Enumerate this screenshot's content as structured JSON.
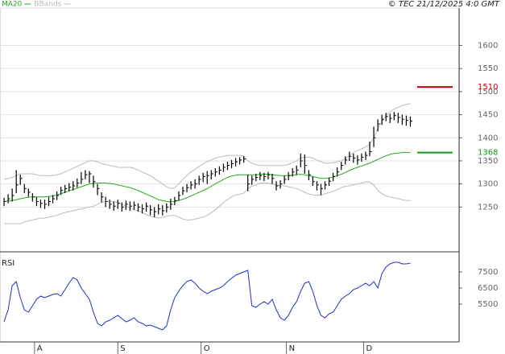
{
  "credit": "© TEC 21/12/2025 4:0 GMT",
  "chart_data": [
    {
      "type": "ohlc",
      "xlim": [
        -1,
        112
      ],
      "ylim": [
        1153,
        1681
      ],
      "yticks": [
        1250,
        1300,
        1350,
        1400,
        1450,
        1500,
        1550,
        1600
      ],
      "grid": true,
      "bar_color": "#000000",
      "high": [
        1270,
        1278,
        1290,
        1330,
        1320,
        1300,
        1290,
        1280,
        1272,
        1266,
        1266,
        1272,
        1276,
        1284,
        1294,
        1298,
        1302,
        1306,
        1312,
        1326,
        1330,
        1328,
        1318,
        1300,
        1282,
        1272,
        1266,
        1262,
        1266,
        1260,
        1264,
        1262,
        1262,
        1258,
        1256,
        1260,
        1254,
        1250,
        1256,
        1254,
        1258,
        1268,
        1272,
        1284,
        1294,
        1300,
        1306,
        1310,
        1318,
        1324,
        1328,
        1330,
        1334,
        1338,
        1344,
        1348,
        1352,
        1356,
        1358,
        1360,
        1320,
        1318,
        1322,
        1326,
        1324,
        1326,
        1322,
        1306,
        1308,
        1318,
        1326,
        1334,
        1340,
        1366,
        1364,
        1330,
        1316,
        1306,
        1300,
        1306,
        1314,
        1324,
        1336,
        1348,
        1360,
        1370,
        1366,
        1362,
        1366,
        1370,
        1392,
        1424,
        1440,
        1450,
        1454,
        1452,
        1456,
        1454,
        1450,
        1448,
        1446
      ],
      "low": [
        1252,
        1258,
        1262,
        1280,
        1298,
        1280,
        1272,
        1262,
        1252,
        1248,
        1246,
        1252,
        1258,
        1265,
        1276,
        1280,
        1284,
        1286,
        1292,
        1300,
        1310,
        1302,
        1292,
        1276,
        1260,
        1250,
        1246,
        1242,
        1246,
        1240,
        1244,
        1242,
        1244,
        1240,
        1236,
        1240,
        1232,
        1228,
        1234,
        1232,
        1238,
        1244,
        1254,
        1264,
        1276,
        1282,
        1288,
        1290,
        1298,
        1304,
        1300,
        1310,
        1316,
        1320,
        1326,
        1330,
        1334,
        1338,
        1342,
        1346,
        1284,
        1298,
        1306,
        1308,
        1306,
        1310,
        1300,
        1286,
        1290,
        1300,
        1308,
        1316,
        1320,
        1336,
        1322,
        1308,
        1296,
        1286,
        1276,
        1288,
        1296,
        1306,
        1316,
        1330,
        1342,
        1350,
        1346,
        1342,
        1348,
        1352,
        1360,
        1380,
        1414,
        1428,
        1436,
        1432,
        1438,
        1432,
        1428,
        1426,
        1424
      ],
      "close": [
        1262,
        1268,
        1275,
        1298,
        1312,
        1290,
        1282,
        1272,
        1262,
        1258,
        1256,
        1262,
        1268,
        1275,
        1286,
        1290,
        1293,
        1296,
        1302,
        1310,
        1320,
        1322,
        1305,
        1290,
        1272,
        1262,
        1256,
        1252,
        1258,
        1250,
        1256,
        1252,
        1254,
        1250,
        1246,
        1252,
        1244,
        1240,
        1246,
        1242,
        1250,
        1256,
        1264,
        1275,
        1285,
        1292,
        1298,
        1300,
        1310,
        1316,
        1318,
        1322,
        1326,
        1330,
        1336,
        1340,
        1344,
        1348,
        1352,
        1354,
        1300,
        1310,
        1314,
        1318,
        1316,
        1320,
        1312,
        1296,
        1300,
        1310,
        1318,
        1326,
        1330,
        1350,
        1340,
        1320,
        1305,
        1298,
        1290,
        1298,
        1306,
        1316,
        1326,
        1340,
        1352,
        1360,
        1356,
        1352,
        1358,
        1362,
        1370,
        1400,
        1430,
        1440,
        1446,
        1442,
        1448,
        1444,
        1440,
        1438,
        1436
      ],
      "series": [
        {
          "name": "MA20",
          "color": "#22aa22",
          "values": [
            1262,
            1263,
            1264,
            1266,
            1268,
            1270,
            1271,
            1272,
            1272,
            1272,
            1272,
            1273,
            1274,
            1276,
            1279,
            1282,
            1285,
            1288,
            1291,
            1294,
            1297,
            1300,
            1301,
            1302,
            1302,
            1302,
            1301,
            1300,
            1298,
            1296,
            1294,
            1292,
            1289,
            1286,
            1282,
            1278,
            1274,
            1270,
            1266,
            1264,
            1262,
            1261,
            1262,
            1264,
            1267,
            1270,
            1274,
            1278,
            1282,
            1286,
            1290,
            1295,
            1300,
            1305,
            1310,
            1314,
            1317,
            1319,
            1320,
            1320,
            1320,
            1320,
            1320,
            1321,
            1321,
            1321,
            1320,
            1319,
            1318,
            1318,
            1318,
            1319,
            1320,
            1321,
            1320,
            1318,
            1316,
            1314,
            1312,
            1312,
            1313,
            1315,
            1318,
            1321,
            1325,
            1329,
            1333,
            1336,
            1339,
            1342,
            1345,
            1349,
            1353,
            1357,
            1361,
            1364,
            1366,
            1367,
            1368,
            1368,
            1368
          ]
        }
      ],
      "bands": {
        "name": "BBands",
        "color": "#bbbbbb",
        "upper": [
          1310,
          1312,
          1314,
          1318,
          1322,
          1322,
          1322,
          1322,
          1320,
          1318,
          1318,
          1318,
          1318,
          1320,
          1322,
          1326,
          1330,
          1334,
          1338,
          1342,
          1346,
          1350,
          1350,
          1348,
          1344,
          1342,
          1340,
          1338,
          1336,
          1336,
          1336,
          1336,
          1334,
          1330,
          1326,
          1322,
          1318,
          1312,
          1306,
          1300,
          1294,
          1290,
          1292,
          1300,
          1310,
          1318,
          1326,
          1332,
          1338,
          1344,
          1348,
          1352,
          1356,
          1358,
          1360,
          1362,
          1362,
          1362,
          1362,
          1360,
          1350,
          1345,
          1342,
          1340,
          1340,
          1340,
          1340,
          1340,
          1340,
          1340,
          1342,
          1346,
          1350,
          1356,
          1358,
          1358,
          1356,
          1352,
          1348,
          1345,
          1345,
          1346,
          1348,
          1350,
          1355,
          1362,
          1368,
          1372,
          1376,
          1380,
          1386,
          1400,
          1420,
          1435,
          1448,
          1456,
          1462,
          1466,
          1470,
          1472,
          1474
        ],
        "lower": [
          1214,
          1214,
          1214,
          1214,
          1214,
          1218,
          1220,
          1222,
          1224,
          1226,
          1226,
          1228,
          1230,
          1232,
          1236,
          1238,
          1240,
          1242,
          1244,
          1246,
          1248,
          1250,
          1252,
          1256,
          1260,
          1262,
          1262,
          1262,
          1260,
          1256,
          1252,
          1248,
          1244,
          1242,
          1238,
          1234,
          1230,
          1228,
          1226,
          1228,
          1230,
          1232,
          1232,
          1228,
          1224,
          1222,
          1222,
          1224,
          1226,
          1228,
          1232,
          1238,
          1244,
          1252,
          1260,
          1266,
          1272,
          1276,
          1278,
          1280,
          1290,
          1295,
          1298,
          1302,
          1302,
          1302,
          1300,
          1298,
          1296,
          1296,
          1294,
          1292,
          1290,
          1286,
          1282,
          1278,
          1276,
          1276,
          1276,
          1279,
          1281,
          1284,
          1288,
          1292,
          1295,
          1296,
          1298,
          1300,
          1302,
          1304,
          1304,
          1298,
          1286,
          1279,
          1274,
          1272,
          1270,
          1268,
          1266,
          1264,
          1264
        ]
      },
      "levels": [
        {
          "value": 1510,
          "color": "#cc0000"
        },
        {
          "value": 1368,
          "color": "#119911"
        }
      ]
    },
    {
      "type": "line",
      "title": "RSI",
      "xlim": [
        -1,
        112
      ],
      "ylim": [
        3150,
        8600
      ],
      "yticks": [
        5500,
        6500,
        7500
      ],
      "xticks": [
        {
          "value": 7.5,
          "label": "A"
        },
        {
          "value": 28,
          "label": "S"
        },
        {
          "value": 48.5,
          "label": "O"
        },
        {
          "value": 69.5,
          "label": "N"
        },
        {
          "value": 88.5,
          "label": "D"
        }
      ],
      "series": [
        {
          "color": "#1f2fbf",
          "values": [
            4400,
            5150,
            6650,
            6900,
            5900,
            5150,
            5000,
            5400,
            5800,
            6000,
            5900,
            6000,
            6100,
            6150,
            6000,
            6400,
            6800,
            7150,
            7000,
            6500,
            6150,
            5800,
            5000,
            4300,
            4150,
            4400,
            4500,
            4650,
            4800,
            4600,
            4400,
            4500,
            4650,
            4400,
            4300,
            4150,
            4200,
            4100,
            4000,
            3900,
            4150,
            5150,
            5900,
            6300,
            6650,
            6900,
            7000,
            6800,
            6500,
            6300,
            6150,
            6300,
            6400,
            6500,
            6650,
            6900,
            7100,
            7300,
            7400,
            7500,
            7600,
            5400,
            5300,
            5500,
            5650,
            5500,
            5800,
            5150,
            4650,
            4500,
            4800,
            5300,
            5650,
            6300,
            6800,
            6900,
            6300,
            5400,
            4800,
            4650,
            4900,
            5000,
            5400,
            5800,
            6000,
            6150,
            6400,
            6500,
            6650,
            6800,
            6650,
            6900,
            6500,
            7400,
            7800,
            8000,
            8100,
            8100,
            8000,
            8000,
            8050
          ]
        }
      ]
    }
  ]
}
